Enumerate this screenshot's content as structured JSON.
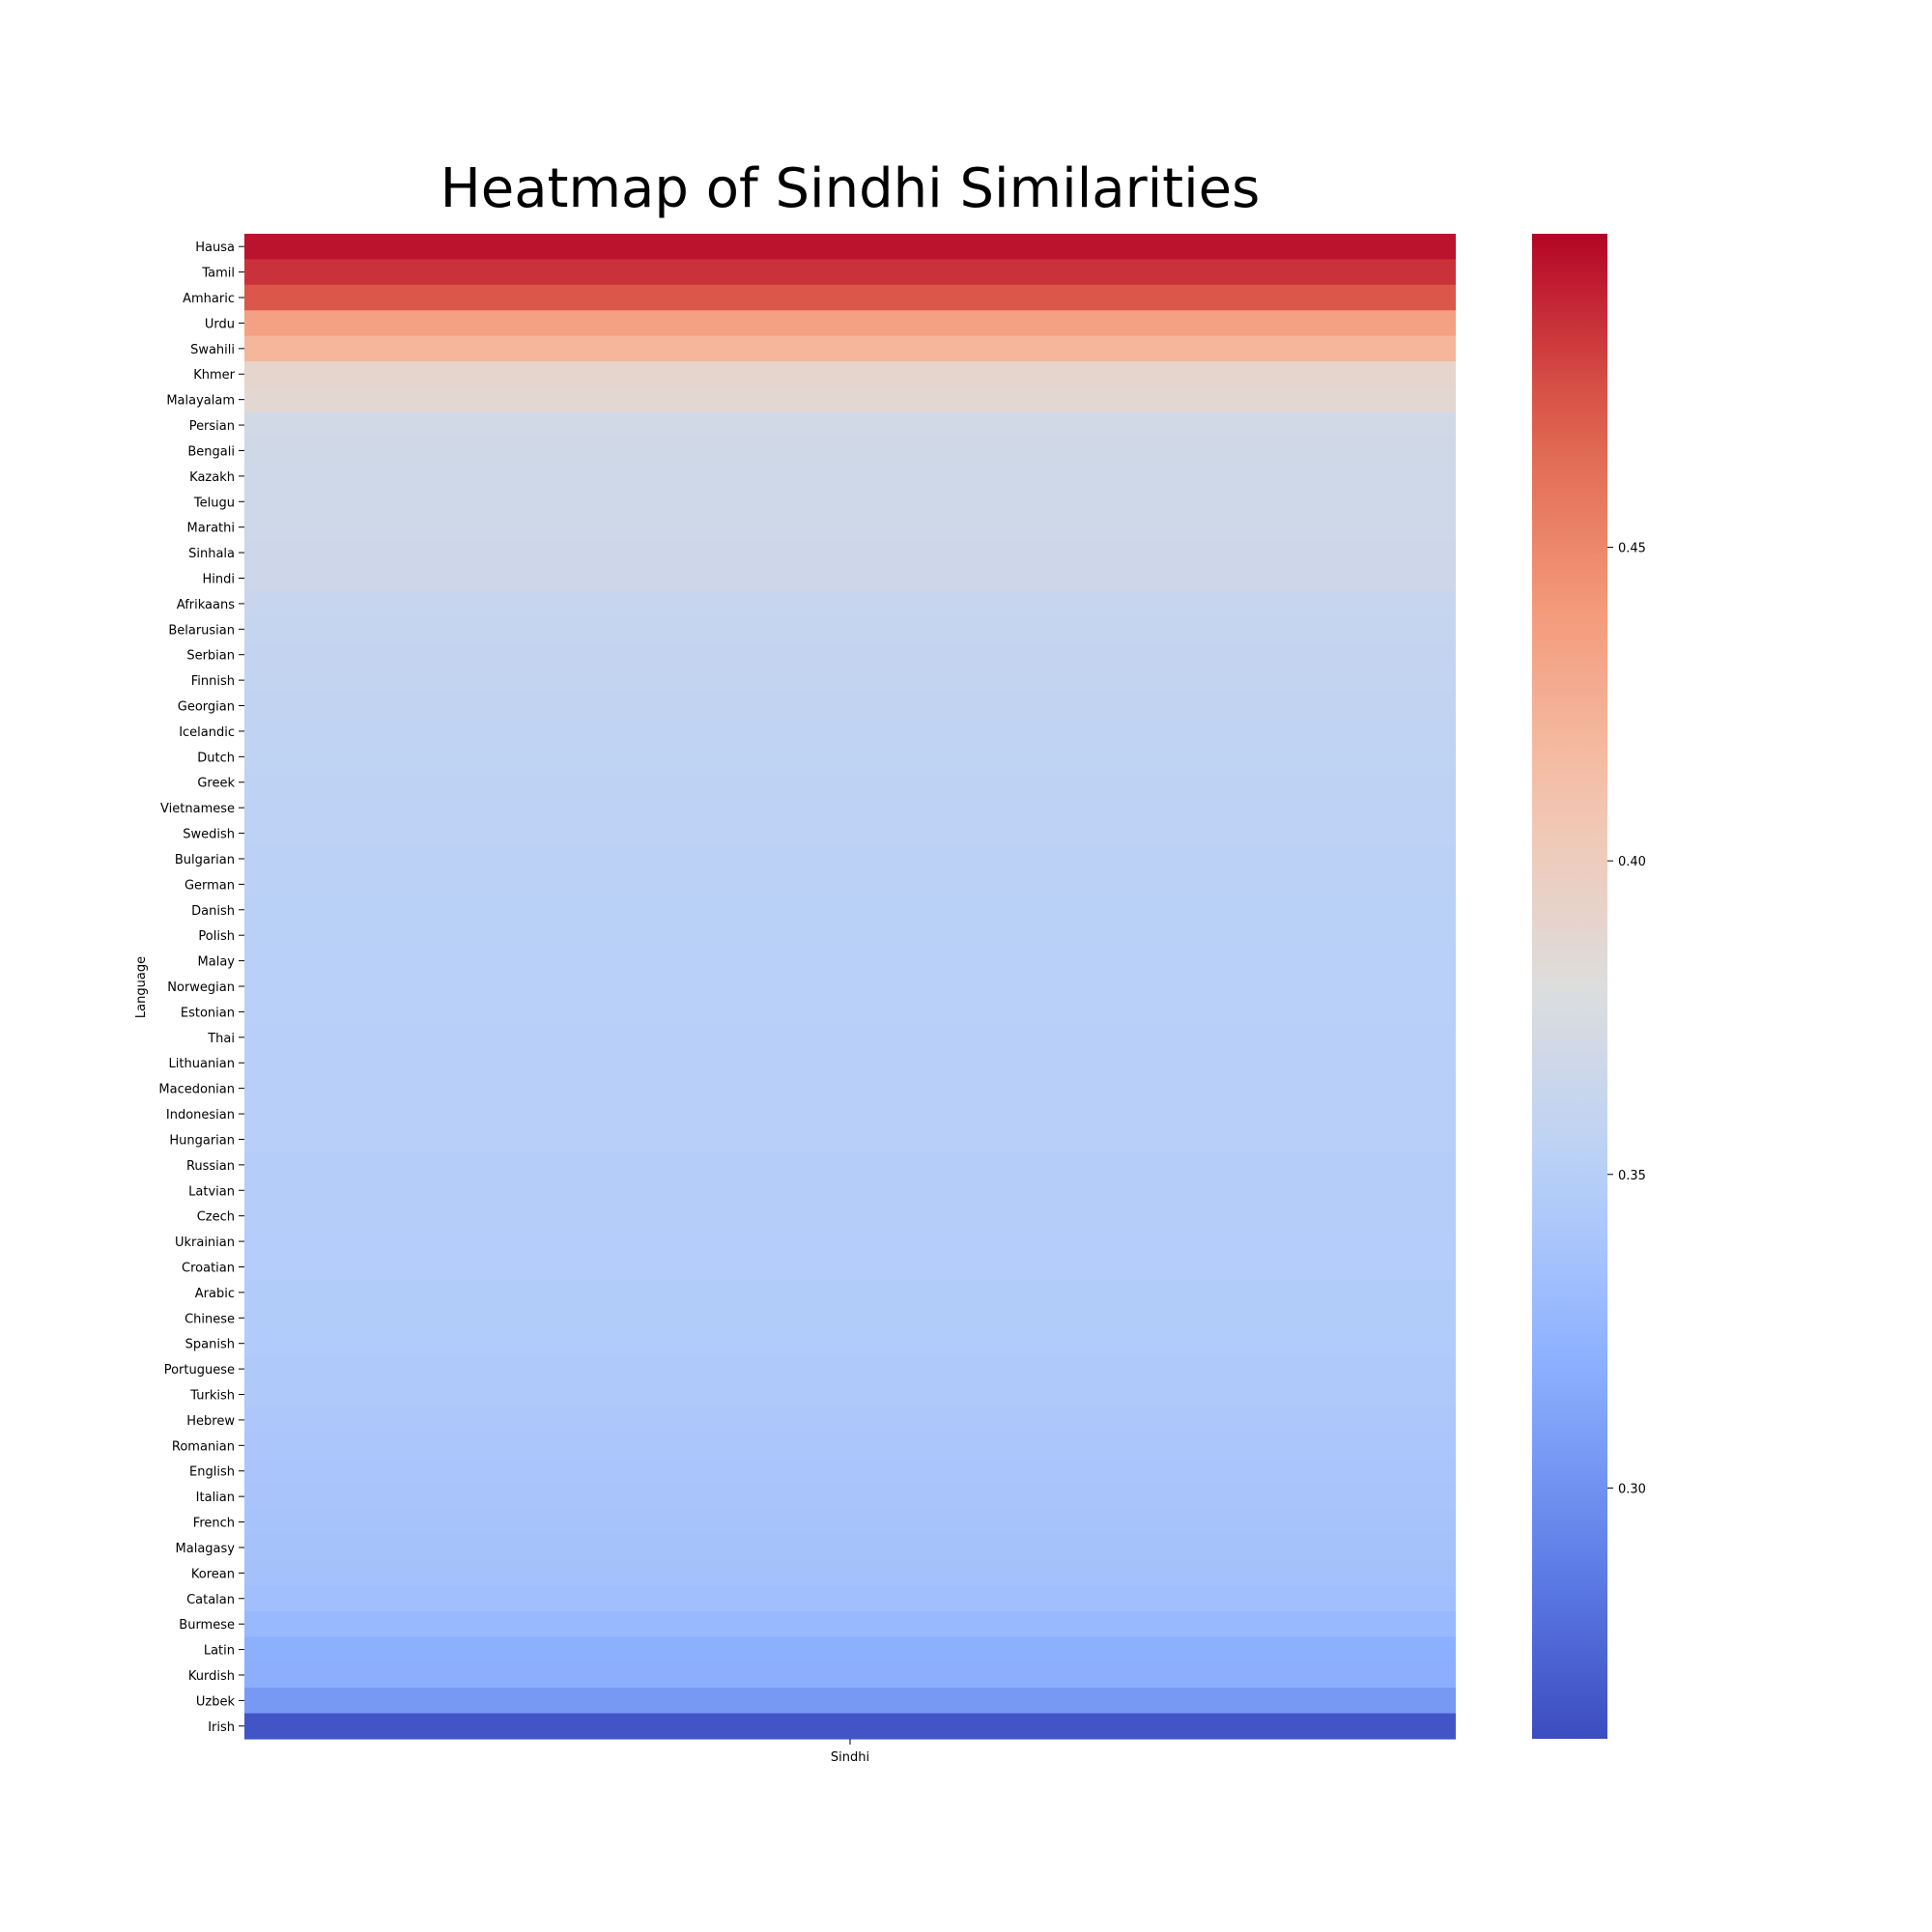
{
  "chart_data": {
    "type": "heatmap",
    "title": "Heatmap of Sindhi Similarities",
    "xlabel": "",
    "ylabel": "Language",
    "columns": [
      "Sindhi"
    ],
    "rows": [
      "Hausa",
      "Tamil",
      "Amharic",
      "Urdu",
      "Swahili",
      "Khmer",
      "Malayalam",
      "Persian",
      "Bengali",
      "Kazakh",
      "Telugu",
      "Marathi",
      "Sinhala",
      "Hindi",
      "Afrikaans",
      "Belarusian",
      "Serbian",
      "Finnish",
      "Georgian",
      "Icelandic",
      "Dutch",
      "Greek",
      "Vietnamese",
      "Swedish",
      "Bulgarian",
      "German",
      "Danish",
      "Polish",
      "Malay",
      "Norwegian",
      "Estonian",
      "Thai",
      "Lithuanian",
      "Macedonian",
      "Indonesian",
      "Hungarian",
      "Russian",
      "Latvian",
      "Czech",
      "Ukrainian",
      "Croatian",
      "Arabic",
      "Chinese",
      "Spanish",
      "Portuguese",
      "Turkish",
      "Hebrew",
      "Romanian",
      "English",
      "Italian",
      "French",
      "Malagasy",
      "Korean",
      "Catalan",
      "Burmese",
      "Latin",
      "Kurdish",
      "Uzbek",
      "Irish"
    ],
    "values": [
      0.495,
      0.485,
      0.473,
      0.436,
      0.42,
      0.39,
      0.387,
      0.37,
      0.369,
      0.368,
      0.368,
      0.368,
      0.367,
      0.367,
      0.362,
      0.361,
      0.36,
      0.359,
      0.358,
      0.357,
      0.356,
      0.355,
      0.354,
      0.354,
      0.353,
      0.353,
      0.352,
      0.352,
      0.351,
      0.351,
      0.351,
      0.35,
      0.35,
      0.349,
      0.349,
      0.349,
      0.348,
      0.348,
      0.348,
      0.347,
      0.347,
      0.346,
      0.346,
      0.345,
      0.344,
      0.343,
      0.342,
      0.341,
      0.34,
      0.339,
      0.338,
      0.337,
      0.336,
      0.334,
      0.328,
      0.32,
      0.319,
      0.305,
      0.265
    ],
    "colormap": "coolwarm",
    "vmin": 0.26,
    "vmax": 0.5,
    "colorbar_ticks": [
      0.3,
      0.35,
      0.4,
      0.45
    ],
    "colorbar_tick_labels": [
      "0.30",
      "0.35",
      "0.40",
      "0.45"
    ]
  }
}
